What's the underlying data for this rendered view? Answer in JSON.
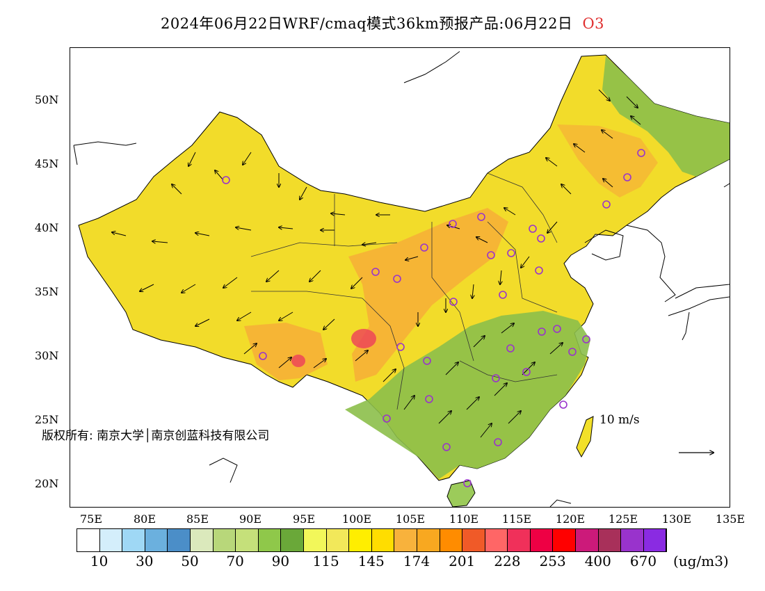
{
  "title": {
    "text": "2024年06月22日WRF/cmaq模式36km预报产品:06月22日",
    "species": "O3"
  },
  "map": {
    "latitude_labels": [
      "50N",
      "45N",
      "40N",
      "35N",
      "30N",
      "25N",
      "20N"
    ],
    "longitude_labels": [
      "75E",
      "80E",
      "85E",
      "90E",
      "95E",
      "100E",
      "105E",
      "110E",
      "115E",
      "120E",
      "125E",
      "130E",
      "135E"
    ],
    "wind_scale_label": "10 m/s",
    "copyright": "版权所有: 南京大学│南京创蓝科技有限公司",
    "station_marker_color": "#9933cc"
  },
  "colorbar": {
    "colors": [
      "#ffffff",
      "#d4eefb",
      "#9fd8f5",
      "#6bb0de",
      "#4b8ec8",
      "#dbe9bc",
      "#b8d77a",
      "#c5e07a",
      "#8fc84a",
      "#6aa839",
      "#f2f75a",
      "#f2e85a",
      "#ffee00",
      "#ffdd00",
      "#f8b23c",
      "#f8a820",
      "#ff8c00",
      "#f05a28",
      "#ff6666",
      "#f0305a",
      "#ee0044",
      "#ff0000",
      "#cc1a7a",
      "#a8305a",
      "#9933cc",
      "#8a2be2"
    ],
    "labels": [
      "10",
      "30",
      "50",
      "70",
      "90",
      "115",
      "145",
      "174",
      "201",
      "228",
      "253",
      "400",
      "670"
    ],
    "unit": "(ug/m3)"
  }
}
